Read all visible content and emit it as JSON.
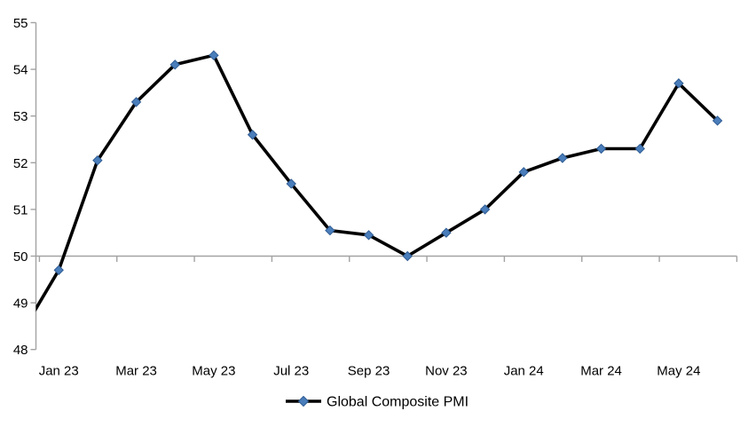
{
  "chart_data": {
    "type": "line",
    "title": "",
    "legend": {
      "label": "Global Composite PMI",
      "position": "bottom-center"
    },
    "y_axis": {
      "min": 48,
      "max": 55,
      "step": 1,
      "ticks": [
        48,
        49,
        50,
        51,
        52,
        53,
        54,
        55
      ],
      "category_axis_crosses_at": 50
    },
    "x_axis": {
      "tick_labels": [
        "Jan 23",
        "Mar 23",
        "May 23",
        "Jul 23",
        "Sep 23",
        "Nov 23",
        "Jan 24",
        "Mar 24",
        "May 24"
      ],
      "label_interval": 2,
      "tick_interval": 2
    },
    "categories": [
      "Jan 23",
      "Feb 23",
      "Mar 23",
      "Apr 23",
      "May 23",
      "Jun 23",
      "Jul 23",
      "Aug 23",
      "Sep 23",
      "Oct 23",
      "Nov 23",
      "Dec 23",
      "Jan 24",
      "Feb 24",
      "Mar 24",
      "Apr 24",
      "May 24",
      "Jun 24"
    ],
    "series": [
      {
        "name": "Global Composite PMI",
        "values": [
          49.7,
          52.05,
          53.3,
          54.1,
          54.3,
          52.6,
          51.55,
          50.55,
          50.45,
          50.0,
          50.5,
          51.0,
          51.8,
          52.1,
          52.3,
          52.3,
          53.7,
          52.9
        ],
        "lead_in_value_clipped_at_axis": 48.3,
        "line_color": "#000000",
        "marker": "diamond",
        "marker_color": "#4a7ebb",
        "marker_edge_color": "#2e5b92"
      }
    ],
    "axis_color": "#a3a3a3",
    "grid": "off",
    "background": "#ffffff"
  }
}
